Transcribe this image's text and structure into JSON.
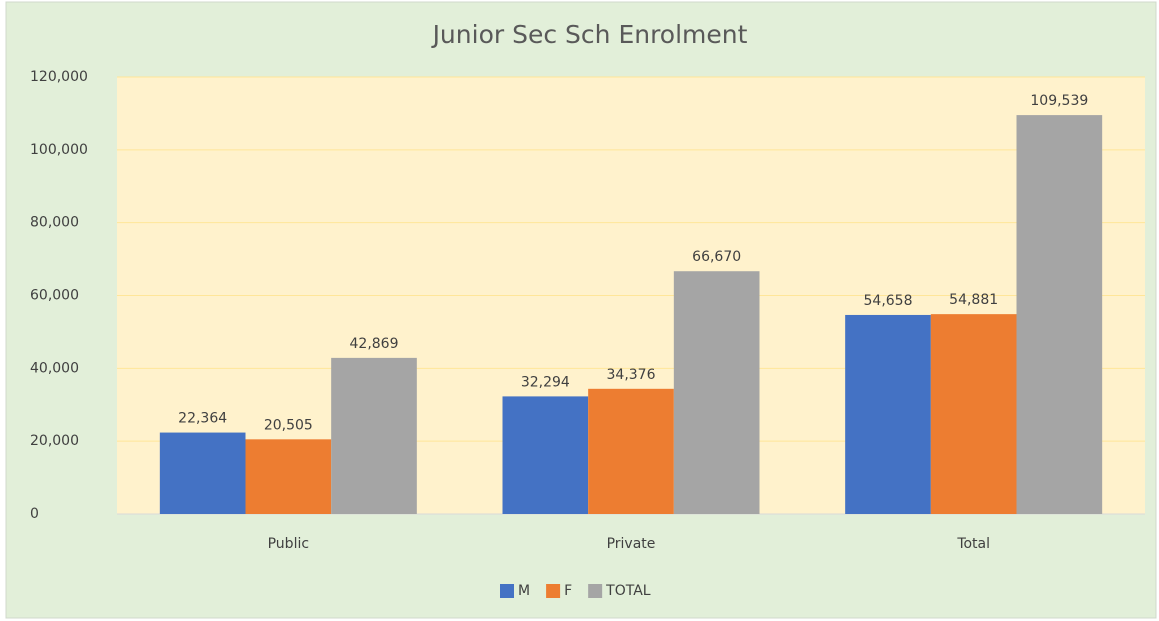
{
  "chart_data": {
    "type": "bar",
    "title": "Junior Sec Sch Enrolment",
    "categories": [
      "Public",
      "Private",
      "Total"
    ],
    "series": [
      {
        "name": "M",
        "color": "#4472c4",
        "values": [
          22364,
          32294,
          54658
        ],
        "value_labels": [
          "22,364",
          "32,294",
          "54,658"
        ]
      },
      {
        "name": "F",
        "color": "#ed7d31",
        "values": [
          20505,
          34376,
          54881
        ],
        "value_labels": [
          "20,505",
          "34,376",
          "54,881"
        ]
      },
      {
        "name": "TOTAL",
        "color": "#a5a5a5",
        "values": [
          42869,
          66670,
          109539
        ],
        "value_labels": [
          "42,869",
          "66,670",
          "109,539"
        ]
      }
    ],
    "ylim": [
      0,
      120000
    ],
    "yticks": [
      0,
      {
        "value": 20000,
        "label": "20,000"
      },
      {
        "value": 40000,
        "label": "40,000"
      },
      {
        "value": 60000,
        "label": "60,000"
      },
      {
        "value": 80000,
        "label": "80,000"
      },
      {
        "value": 100000,
        "label": "100,000"
      },
      {
        "value": 120000,
        "label": "120,000"
      }
    ],
    "grid": true,
    "legend": "bottom"
  }
}
